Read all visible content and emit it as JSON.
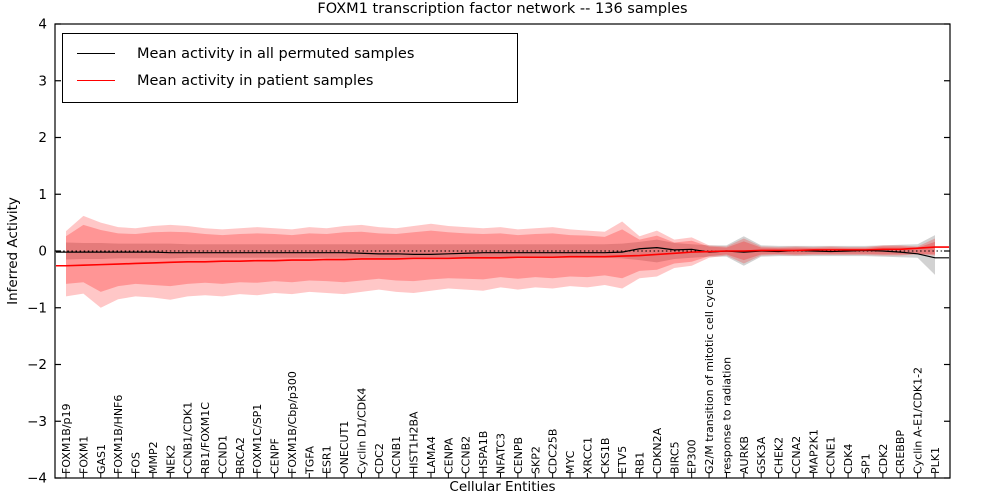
{
  "title": "FOXM1 transcription factor network -- 136 samples",
  "legend": {
    "items": [
      {
        "label": "Mean activity in all permuted samples",
        "color": "#000000"
      },
      {
        "label": "Mean activity in patient samples",
        "color": "#ff0000"
      }
    ]
  },
  "chart_data": {
    "type": "line",
    "title": "FOXM1 transcription factor network -- 136 samples",
    "xlabel": "Cellular Entities",
    "ylabel": "Inferred Activity",
    "ylim": [
      -4,
      4
    ],
    "yticks": [
      4,
      3,
      2,
      1,
      0,
      -1,
      -2,
      -3,
      -4
    ],
    "grid": false,
    "legend_position": "upper left",
    "zero_line": {
      "style": "dotted",
      "y": 0,
      "color": "#000000"
    },
    "colors": {
      "permuted_line": "#000000",
      "patient_line": "#ff0000",
      "permuted_band": "rgba(125,125,125,0.35)",
      "patient_band_outer": "rgba(255,0,0,0.22)",
      "patient_band_inner": "rgba(255,0,0,0.25)"
    },
    "categories": [
      "FOXM1B/p19",
      "FOXM1",
      "GAS1",
      "FOXM1B/HNF6",
      "FOS",
      "MMP2",
      "NEK2",
      "CCNB1/CDK1",
      "RB1/FOXM1C",
      "CCND1",
      "BRCA2",
      "FOXM1C/SP1",
      "CENPF",
      "FOXM1B/Cbp/p300",
      "TGFA",
      "ESR1",
      "ONECUT1",
      "Cyclin D1/CDK4",
      "CDC2",
      "CCNB1",
      "HIST1H2BA",
      "LAMA4",
      "CENPA",
      "CCNB2",
      "HSPA1B",
      "NFATC3",
      "CENPB",
      "SKP2",
      "CDC25B",
      "MYC",
      "XRCC1",
      "CKS1B",
      "ETV5",
      "RB1",
      "CDKN2A",
      "BIRC5",
      "EP300",
      "G2/M transition of mitotic cell cycle",
      "response to radiation",
      "AURKB",
      "GSK3A",
      "CHEK2",
      "CCNA2",
      "MAP2K1",
      "CCNE1",
      "CDK4",
      "SP1",
      "CDK2",
      "CREBBP",
      "Cyclin A-E1/CDK1-2",
      "PLK1"
    ],
    "series": [
      {
        "name": "Mean activity in all permuted samples",
        "kind": "line",
        "color": "#000000",
        "values": [
          -0.02,
          -0.02,
          -0.02,
          -0.02,
          -0.02,
          -0.02,
          -0.03,
          -0.03,
          -0.03,
          -0.03,
          -0.03,
          -0.03,
          -0.03,
          -0.03,
          -0.03,
          -0.03,
          -0.03,
          -0.04,
          -0.05,
          -0.05,
          -0.06,
          -0.06,
          -0.05,
          -0.04,
          -0.03,
          -0.03,
          -0.03,
          -0.03,
          -0.03,
          -0.03,
          -0.03,
          -0.03,
          -0.02,
          0.04,
          0.06,
          0.02,
          0.03,
          -0.02,
          0.0,
          -0.02,
          0.0,
          -0.01,
          0.01,
          0.0,
          -0.01,
          0.0,
          0.01,
          0.0,
          -0.02,
          -0.05,
          -0.12
        ]
      },
      {
        "name": "Mean activity in patient samples",
        "kind": "line",
        "color": "#ff0000",
        "values": [
          -0.26,
          -0.25,
          -0.24,
          -0.23,
          -0.22,
          -0.21,
          -0.2,
          -0.19,
          -0.19,
          -0.18,
          -0.18,
          -0.17,
          -0.17,
          -0.16,
          -0.16,
          -0.15,
          -0.15,
          -0.14,
          -0.14,
          -0.14,
          -0.13,
          -0.13,
          -0.13,
          -0.12,
          -0.12,
          -0.12,
          -0.11,
          -0.11,
          -0.11,
          -0.1,
          -0.1,
          -0.1,
          -0.09,
          -0.08,
          -0.06,
          -0.04,
          -0.02,
          -0.01,
          0.0,
          0.0,
          0.01,
          0.01,
          0.01,
          0.02,
          0.02,
          0.02,
          0.02,
          0.03,
          0.03,
          0.05,
          0.07
        ]
      },
      {
        "name": "permuted-samples-band",
        "kind": "band",
        "color_key": "permuted_band",
        "upper": [
          0.15,
          0.14,
          0.14,
          0.13,
          0.13,
          0.13,
          0.13,
          0.12,
          0.12,
          0.12,
          0.12,
          0.12,
          0.12,
          0.12,
          0.12,
          0.12,
          0.12,
          0.12,
          0.12,
          0.12,
          0.12,
          0.12,
          0.12,
          0.12,
          0.12,
          0.12,
          0.12,
          0.12,
          0.12,
          0.12,
          0.12,
          0.12,
          0.13,
          0.16,
          0.2,
          0.14,
          0.12,
          0.1,
          0.1,
          0.26,
          0.1,
          0.09,
          0.09,
          0.09,
          0.09,
          0.09,
          0.09,
          0.1,
          0.11,
          0.12,
          0.28
        ],
        "lower": [
          -0.15,
          -0.14,
          -0.14,
          -0.13,
          -0.13,
          -0.13,
          -0.13,
          -0.12,
          -0.12,
          -0.12,
          -0.12,
          -0.12,
          -0.12,
          -0.12,
          -0.12,
          -0.12,
          -0.12,
          -0.12,
          -0.12,
          -0.12,
          -0.12,
          -0.12,
          -0.12,
          -0.12,
          -0.12,
          -0.12,
          -0.12,
          -0.12,
          -0.12,
          -0.12,
          -0.12,
          -0.12,
          -0.13,
          -0.16,
          -0.2,
          -0.14,
          -0.12,
          -0.1,
          -0.1,
          -0.26,
          -0.1,
          -0.09,
          -0.09,
          -0.09,
          -0.09,
          -0.09,
          -0.09,
          -0.1,
          -0.11,
          -0.12,
          -0.42
        ]
      },
      {
        "name": "patient-samples-band-outer",
        "kind": "band",
        "color_key": "patient_band_outer",
        "upper": [
          0.35,
          0.62,
          0.5,
          0.42,
          0.4,
          0.44,
          0.46,
          0.44,
          0.4,
          0.38,
          0.4,
          0.42,
          0.4,
          0.38,
          0.42,
          0.4,
          0.44,
          0.46,
          0.42,
          0.4,
          0.44,
          0.48,
          0.44,
          0.42,
          0.4,
          0.42,
          0.38,
          0.4,
          0.42,
          0.38,
          0.36,
          0.34,
          0.52,
          0.26,
          0.36,
          0.2,
          0.24,
          0.1,
          0.08,
          0.22,
          0.08,
          0.07,
          0.08,
          0.07,
          0.08,
          0.07,
          0.07,
          0.1,
          0.1,
          0.08,
          0.22
        ],
        "lower": [
          -0.8,
          -0.75,
          -1.0,
          -0.85,
          -0.8,
          -0.82,
          -0.86,
          -0.8,
          -0.78,
          -0.8,
          -0.76,
          -0.78,
          -0.74,
          -0.76,
          -0.72,
          -0.74,
          -0.76,
          -0.72,
          -0.68,
          -0.72,
          -0.74,
          -0.7,
          -0.66,
          -0.68,
          -0.7,
          -0.64,
          -0.68,
          -0.64,
          -0.66,
          -0.62,
          -0.64,
          -0.6,
          -0.66,
          -0.48,
          -0.45,
          -0.3,
          -0.26,
          -0.12,
          -0.08,
          -0.22,
          -0.08,
          -0.07,
          -0.08,
          -0.07,
          -0.07,
          -0.07,
          -0.07,
          -0.08,
          -0.08,
          -0.06,
          -0.08
        ]
      },
      {
        "name": "patient-samples-band-inner",
        "kind": "band",
        "color_key": "patient_band_inner",
        "upper": [
          0.26,
          0.46,
          0.37,
          0.31,
          0.3,
          0.33,
          0.34,
          0.33,
          0.3,
          0.28,
          0.3,
          0.31,
          0.3,
          0.28,
          0.31,
          0.3,
          0.33,
          0.34,
          0.31,
          0.3,
          0.33,
          0.36,
          0.33,
          0.31,
          0.3,
          0.31,
          0.28,
          0.3,
          0.31,
          0.28,
          0.27,
          0.25,
          0.38,
          0.2,
          0.27,
          0.15,
          0.18,
          0.08,
          0.06,
          0.17,
          0.06,
          0.05,
          0.06,
          0.05,
          0.06,
          0.05,
          0.05,
          0.08,
          0.08,
          0.06,
          0.16
        ],
        "lower": [
          -0.58,
          -0.55,
          -0.72,
          -0.62,
          -0.58,
          -0.6,
          -0.62,
          -0.58,
          -0.56,
          -0.58,
          -0.55,
          -0.56,
          -0.53,
          -0.55,
          -0.52,
          -0.53,
          -0.55,
          -0.52,
          -0.49,
          -0.52,
          -0.53,
          -0.5,
          -0.48,
          -0.49,
          -0.5,
          -0.46,
          -0.49,
          -0.46,
          -0.48,
          -0.45,
          -0.46,
          -0.43,
          -0.48,
          -0.35,
          -0.33,
          -0.22,
          -0.19,
          -0.09,
          -0.06,
          -0.16,
          -0.06,
          -0.05,
          -0.06,
          -0.05,
          -0.05,
          -0.05,
          -0.05,
          -0.06,
          -0.06,
          -0.05,
          -0.06
        ]
      }
    ]
  }
}
